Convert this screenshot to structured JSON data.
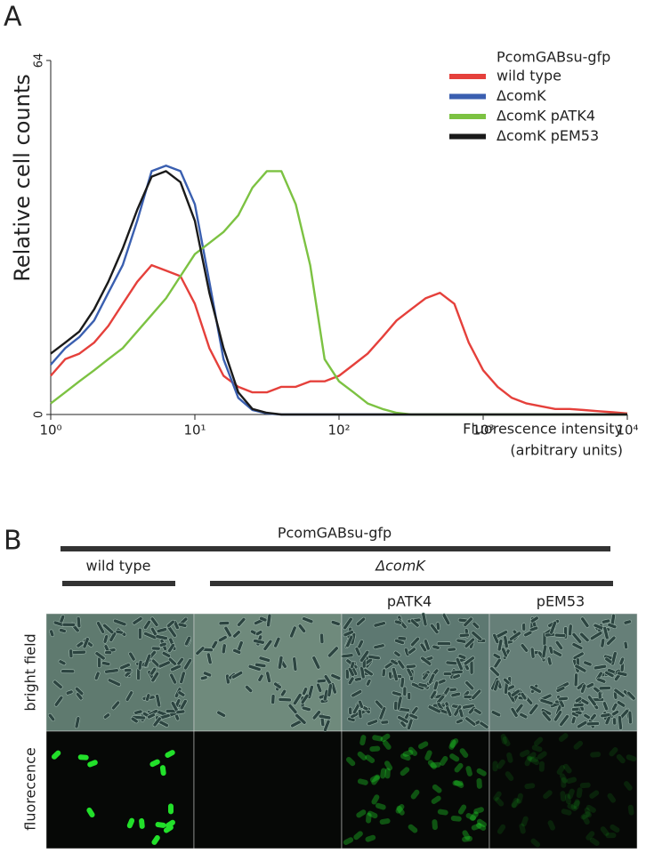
{
  "chart_data": {
    "type": "line",
    "panel_label": "A",
    "y_label": "Relative cell counts",
    "x_label": [
      "Fluorescence intensity",
      "(arbitrary units)"
    ],
    "legend_title": "PcomGABsu-gfp",
    "log_x": true,
    "xlim": [
      1,
      10000
    ],
    "xticks": [
      {
        "value": 1,
        "label": "10⁰"
      },
      {
        "value": 10,
        "label": "10¹"
      },
      {
        "value": 100,
        "label": "10²"
      },
      {
        "value": 1000,
        "label": "10³"
      },
      {
        "value": 10000,
        "label": "10⁴"
      }
    ],
    "ylim": [
      0,
      64
    ],
    "yticks": [
      0,
      64
    ],
    "x": [
      1,
      1.26,
      1.58,
      2,
      2.51,
      3.16,
      3.98,
      5.01,
      6.31,
      7.94,
      10,
      12.6,
      15.8,
      20,
      25.1,
      31.6,
      39.8,
      50.1,
      63.1,
      79.4,
      100,
      126,
      158,
      200,
      251,
      316,
      398,
      501,
      631,
      794,
      1000,
      1260,
      1580,
      2000,
      2510,
      3160,
      3980,
      5010,
      6310,
      7940,
      10000
    ],
    "series": [
      {
        "name": "wild type",
        "color": "#e5403b",
        "values": [
          7,
          10,
          11,
          13,
          16,
          20,
          24,
          27,
          26,
          25,
          20,
          12,
          7,
          5,
          4,
          4,
          5,
          5,
          6,
          6,
          7,
          9,
          11,
          14,
          17,
          19,
          21,
          22,
          20,
          13,
          8,
          5,
          3,
          2,
          1.5,
          1,
          1,
          0.8,
          0.6,
          0.4,
          0.2
        ]
      },
      {
        "name": "ΔcomK",
        "color": "#3a5fb0",
        "values": [
          9,
          12,
          14,
          17,
          22,
          27,
          35,
          44,
          45,
          44,
          38,
          24,
          10,
          3,
          0.8,
          0.2,
          0,
          0,
          0,
          0,
          0,
          0,
          0,
          0,
          0,
          0,
          0,
          0,
          0,
          0,
          0,
          0,
          0,
          0,
          0,
          0,
          0,
          0,
          0,
          0,
          0
        ]
      },
      {
        "name": "ΔcomK pATK4",
        "color": "#7cc242",
        "values": [
          2,
          4,
          6,
          8,
          10,
          12,
          15,
          18,
          21,
          25,
          29,
          31,
          33,
          36,
          41,
          44,
          44,
          38,
          27,
          10,
          6,
          4,
          2,
          1,
          0.3,
          0,
          0,
          0,
          0,
          0,
          0,
          0,
          0,
          0,
          0,
          0,
          0,
          0,
          0,
          0,
          0
        ]
      },
      {
        "name": "ΔcomK pEM53",
        "color": "#1a1a1a",
        "values": [
          11,
          13,
          15,
          19,
          24,
          30,
          37,
          43,
          44,
          42,
          35,
          22,
          12,
          4,
          1,
          0.3,
          0,
          0,
          0,
          0,
          0,
          0,
          0,
          0,
          0,
          0,
          0,
          0,
          0,
          0,
          0,
          0,
          0,
          0,
          0,
          0,
          0,
          0,
          0,
          0,
          0
        ]
      }
    ]
  },
  "panel_b": {
    "panel_label": "B",
    "construct": "PcomGABsu-gfp",
    "wild_type": "wild type",
    "mutant": "ΔcomK",
    "plasmids": [
      "pATK4",
      "pEM53"
    ],
    "rows": [
      "bright field",
      "fluorecence"
    ]
  }
}
